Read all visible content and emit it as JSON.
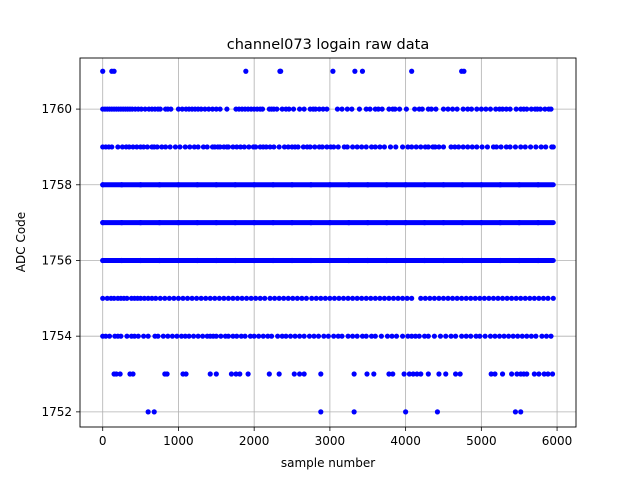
{
  "chart_data": {
    "type": "scatter",
    "title": "channel073 logain raw data",
    "xlabel": "sample number",
    "ylabel": "ADC Code",
    "xlim": [
      -300,
      6250
    ],
    "ylim": [
      1751.6,
      1761.35
    ],
    "xticks": [
      0,
      1000,
      2000,
      3000,
      4000,
      5000,
      6000
    ],
    "xtick_labels": [
      "0",
      "1000",
      "2000",
      "3000",
      "4000",
      "5000",
      "6000"
    ],
    "yticks": [
      1752,
      1754,
      1756,
      1758,
      1760
    ],
    "ytick_labels": [
      "1752",
      "1754",
      "1756",
      "1758",
      "1760"
    ],
    "grid": true,
    "marker_color": "#0000ff",
    "n_samples": 5950,
    "series": [
      {
        "values_by_level": [
          {
            "y": 1761,
            "x": [
              0,
              120,
              150,
              1890,
              2340,
              2350,
              3040,
              3330,
              3430,
              4080,
              4740,
              4770
            ]
          },
          {
            "y": 1760,
            "x": [
              0,
              30,
              60,
              90,
              120,
              150,
              180,
              210,
              240,
              270,
              300,
              330,
              360,
              390,
              430,
              470,
              510,
              560,
              610,
              650,
              690,
              730,
              760,
              830,
              860,
              900,
              1000,
              1050,
              1100,
              1140,
              1180,
              1220,
              1260,
              1300,
              1350,
              1400,
              1450,
              1500,
              1550,
              1640,
              1760,
              1800,
              1840,
              1880,
              1920,
              1960,
              2000,
              2040,
              2080,
              2110,
              2200,
              2230,
              2260,
              2300,
              2370,
              2420,
              2460,
              2520,
              2600,
              2660,
              2740,
              2780,
              2810,
              2860,
              2910,
              2960,
              3100,
              3160,
              3230,
              3290,
              3390,
              3480,
              3530,
              3600,
              3640,
              3690,
              3780,
              3830,
              3860,
              3920,
              4010,
              4120,
              4180,
              4220,
              4300,
              4340,
              4400,
              4500,
              4560,
              4620,
              4680,
              4760,
              4820,
              4870,
              4940,
              5000,
              5060,
              5120,
              5190,
              5240,
              5280,
              5330,
              5380,
              5460,
              5520,
              5560,
              5600,
              5660,
              5710,
              5740,
              5780,
              5840,
              5890,
              5920
            ]
          },
          {
            "y": 1759,
            "x": [
              0,
              40,
              80,
              120,
              200,
              260,
              310,
              350,
              400,
              450,
              500,
              540,
              590,
              650,
              680,
              720,
              780,
              830,
              890,
              960,
              1020,
              1090,
              1150,
              1210,
              1260,
              1330,
              1380,
              1450,
              1480,
              1520,
              1550,
              1600,
              1640,
              1660,
              1720,
              1770,
              1820,
              1870,
              1930,
              1990,
              2020,
              2080,
              2120,
              2160,
              2210,
              2260,
              2330,
              2400,
              2450,
              2500,
              2540,
              2580,
              2650,
              2700,
              2740,
              2800,
              2860,
              2900,
              2960,
              3010,
              3050,
              3110,
              3190,
              3230,
              3300,
              3360,
              3420,
              3480,
              3550,
              3600,
              3660,
              3720,
              3800,
              3870,
              3960,
              4030,
              4080,
              4140,
              4200,
              4260,
              4300,
              4360,
              4390,
              4440,
              4500,
              4600,
              4650,
              4700,
              4760,
              4820,
              4880,
              4940,
              5010,
              5080,
              5160,
              5200,
              5260,
              5330,
              5380,
              5450,
              5520,
              5580,
              5650,
              5720,
              5790,
              5850,
              5930,
              5950
            ]
          },
          {
            "y": 1758,
            "dense": true,
            "x_range": [
              0,
              5950
            ]
          },
          {
            "y": 1757,
            "dense": true,
            "x_range": [
              0,
              5950
            ]
          },
          {
            "y": 1756,
            "dense": true,
            "x_range": [
              0,
              5950
            ]
          },
          {
            "y": 1755,
            "x": [
              0,
              60,
              110,
              150,
              200,
              240,
              280,
              320,
              380,
              420,
              460,
              500,
              550,
              600,
              650,
              700,
              760,
              820,
              880,
              940,
              1000,
              1060,
              1120,
              1180,
              1240,
              1300,
              1360,
              1420,
              1480,
              1540,
              1600,
              1660,
              1720,
              1780,
              1840,
              1900,
              1960,
              2020,
              2080,
              2140,
              2210,
              2270,
              2330,
              2390,
              2450,
              2510,
              2570,
              2630,
              2690,
              2760,
              2820,
              2880,
              2940,
              3000,
              3060,
              3120,
              3180,
              3240,
              3300,
              3360,
              3420,
              3480,
              3540,
              3600,
              3660,
              3720,
              3780,
              3840,
              3900,
              3960,
              4020,
              4080,
              4200,
              4260,
              4320,
              4380,
              4440,
              4500,
              4560,
              4620,
              4680,
              4740,
              4800,
              4860,
              4920,
              4980,
              5040,
              5100,
              5160,
              5220,
              5280,
              5340,
              5400,
              5460,
              5520,
              5580,
              5640,
              5700,
              5760,
              5820,
              5880,
              5950
            ]
          },
          {
            "y": 1754,
            "x": [
              0,
              40,
              90,
              160,
              200,
              240,
              320,
              380,
              420,
              470,
              540,
              600,
              690,
              730,
              800,
              860,
              920,
              980,
              1040,
              1090,
              1140,
              1200,
              1260,
              1320,
              1380,
              1420,
              1460,
              1500,
              1560,
              1620,
              1660,
              1720,
              1770,
              1830,
              1880,
              1950,
              2000,
              2060,
              2120,
              2180,
              2230,
              2310,
              2370,
              2420,
              2480,
              2540,
              2600,
              2660,
              2730,
              2790,
              2850,
              2920,
              2980,
              3050,
              3110,
              3160,
              3240,
              3300,
              3360,
              3430,
              3480,
              3550,
              3600,
              3680,
              3760,
              3820,
              3880,
              3960,
              4030,
              4080,
              4130,
              4180,
              4250,
              4300,
              4380,
              4460,
              4530,
              4600,
              4660,
              4740,
              4800,
              4860,
              4930,
              4980,
              5050,
              5120,
              5180,
              5240,
              5300,
              5360,
              5420,
              5480,
              5540,
              5600,
              5660,
              5720,
              5800,
              5860,
              5920
            ]
          },
          {
            "y": 1753,
            "x": [
              150,
              180,
              230,
              360,
              400,
              820,
              850,
              1060,
              1100,
              1420,
              1500,
              1700,
              1760,
              1810,
              1920,
              2200,
              2330,
              2530,
              2600,
              2660,
              2880,
              3320,
              3490,
              3580,
              3780,
              3830,
              3980,
              4050,
              4100,
              4150,
              4200,
              4300,
              4440,
              4530,
              4660,
              4720,
              5130,
              5180,
              5280,
              5400,
              5470,
              5520,
              5560,
              5600,
              5700,
              5760,
              5830,
              5880,
              5940
            ]
          },
          {
            "y": 1752,
            "x": [
              600,
              680,
              2880,
              3320,
              4000,
              4420,
              5450,
              5520
            ]
          }
        ]
      }
    ]
  }
}
